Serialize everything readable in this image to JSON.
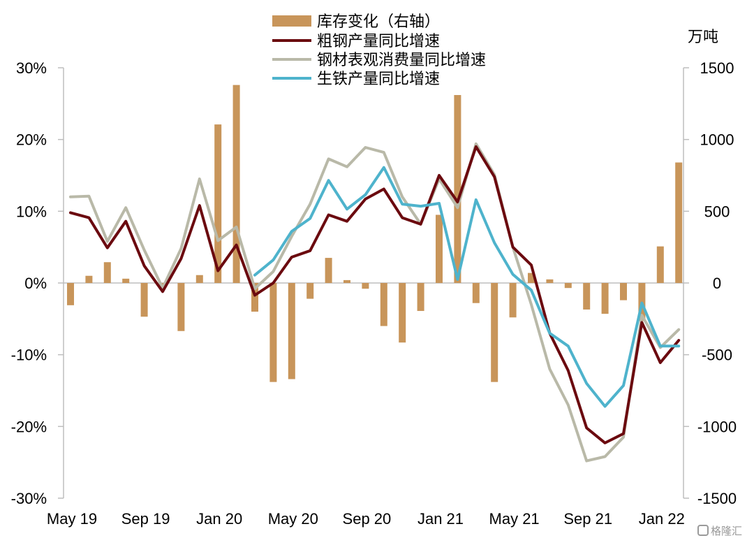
{
  "chart_data": {
    "type": "bar+line",
    "categories": [
      "May 19",
      "Jun 19",
      "Jul 19",
      "Aug 19",
      "Sep 19",
      "Oct 19",
      "Nov 19",
      "Dec 19",
      "Jan 20",
      "Feb 20",
      "Mar 20",
      "Apr 20",
      "May 20",
      "Jun 20",
      "Jul 20",
      "Aug 20",
      "Sep 20",
      "Oct 20",
      "Nov 20",
      "Dec 20",
      "Jan 21",
      "Feb 21",
      "Mar 21",
      "Apr 21",
      "May 21",
      "Jun 21",
      "Jul 21",
      "Aug 21",
      "Sep 21",
      "Oct 21",
      "Nov 21",
      "Dec 21",
      "Jan 22",
      "Feb 22"
    ],
    "x_tick_labels": [
      "May 19",
      "Sep 19",
      "Jan 20",
      "May 20",
      "Sep 20",
      "Jan 21",
      "May 21",
      "Sep 21",
      "Jan 22"
    ],
    "y_left": {
      "ticks": [
        "30%",
        "20%",
        "10%",
        "0%",
        "-10%",
        "-20%",
        "-30%"
      ],
      "ylim": [
        -30,
        30
      ],
      "unit": "%"
    },
    "y_right": {
      "ticks": [
        "1500",
        "1000",
        "500",
        "0",
        "-500",
        "-1000",
        "-1500"
      ],
      "ylim": [
        -1500,
        1500
      ],
      "unit_label": "万吨"
    },
    "series": [
      {
        "name": "库存变化（右轴）",
        "type": "bar",
        "axis": "right",
        "color": "#c8955a",
        "values": [
          -155,
          50,
          145,
          30,
          -235,
          -15,
          -335,
          55,
          1105,
          1380,
          -200,
          -690,
          -670,
          -110,
          175,
          20,
          -40,
          -300,
          -415,
          -195,
          475,
          1310,
          -140,
          -690,
          -240,
          70,
          25,
          -35,
          -185,
          -215,
          -120,
          -265,
          255,
          840
        ]
      },
      {
        "name": "粗钢产量同比增速",
        "type": "line",
        "axis": "left",
        "color": "#6b0a0f",
        "values": [
          9.8,
          9.1,
          4.9,
          8.6,
          2.4,
          -1.2,
          3.4,
          10.8,
          1.7,
          5.3,
          -1.7,
          0,
          3.6,
          4.5,
          9.5,
          8.6,
          11.7,
          13.1,
          9.1,
          8.2,
          15.0,
          11.3,
          19.0,
          14.8,
          5.0,
          2.5,
          -7.0,
          -12.2,
          -20.2,
          -22.3,
          -21.0,
          -5.5,
          -11.1,
          -8.0
        ]
      },
      {
        "name": "钢材表观消费量同比增速",
        "type": "line",
        "axis": "left",
        "color": "#b9b9a8",
        "values": [
          12.0,
          12.1,
          5.8,
          10.5,
          4.6,
          -0.7,
          4.8,
          14.5,
          5.9,
          7.8,
          -0.8,
          1.6,
          6.5,
          11.0,
          17.3,
          16.2,
          18.9,
          18.2,
          12.0,
          8.2,
          14.5,
          10.5,
          19.4,
          15.1,
          5.0,
          -3.0,
          -12.0,
          -17.0,
          -24.8,
          -24.2,
          -21.5,
          -4.5,
          -9.0,
          -6.5
        ]
      },
      {
        "name": "生铁产量同比增速",
        "type": "line",
        "axis": "left",
        "color": "#4eb3cc",
        "values": [
          null,
          null,
          null,
          null,
          null,
          null,
          null,
          null,
          null,
          null,
          1.1,
          3.2,
          7.2,
          9.0,
          14.3,
          10.3,
          12.3,
          16.1,
          11.0,
          10.7,
          11.1,
          0.5,
          11.6,
          5.6,
          1.2,
          -1.0,
          -7.0,
          -8.8,
          -14.0,
          -17.2,
          -14.3,
          -2.8,
          -8.8,
          -8.8
        ]
      }
    ]
  },
  "watermark": "格隆汇"
}
